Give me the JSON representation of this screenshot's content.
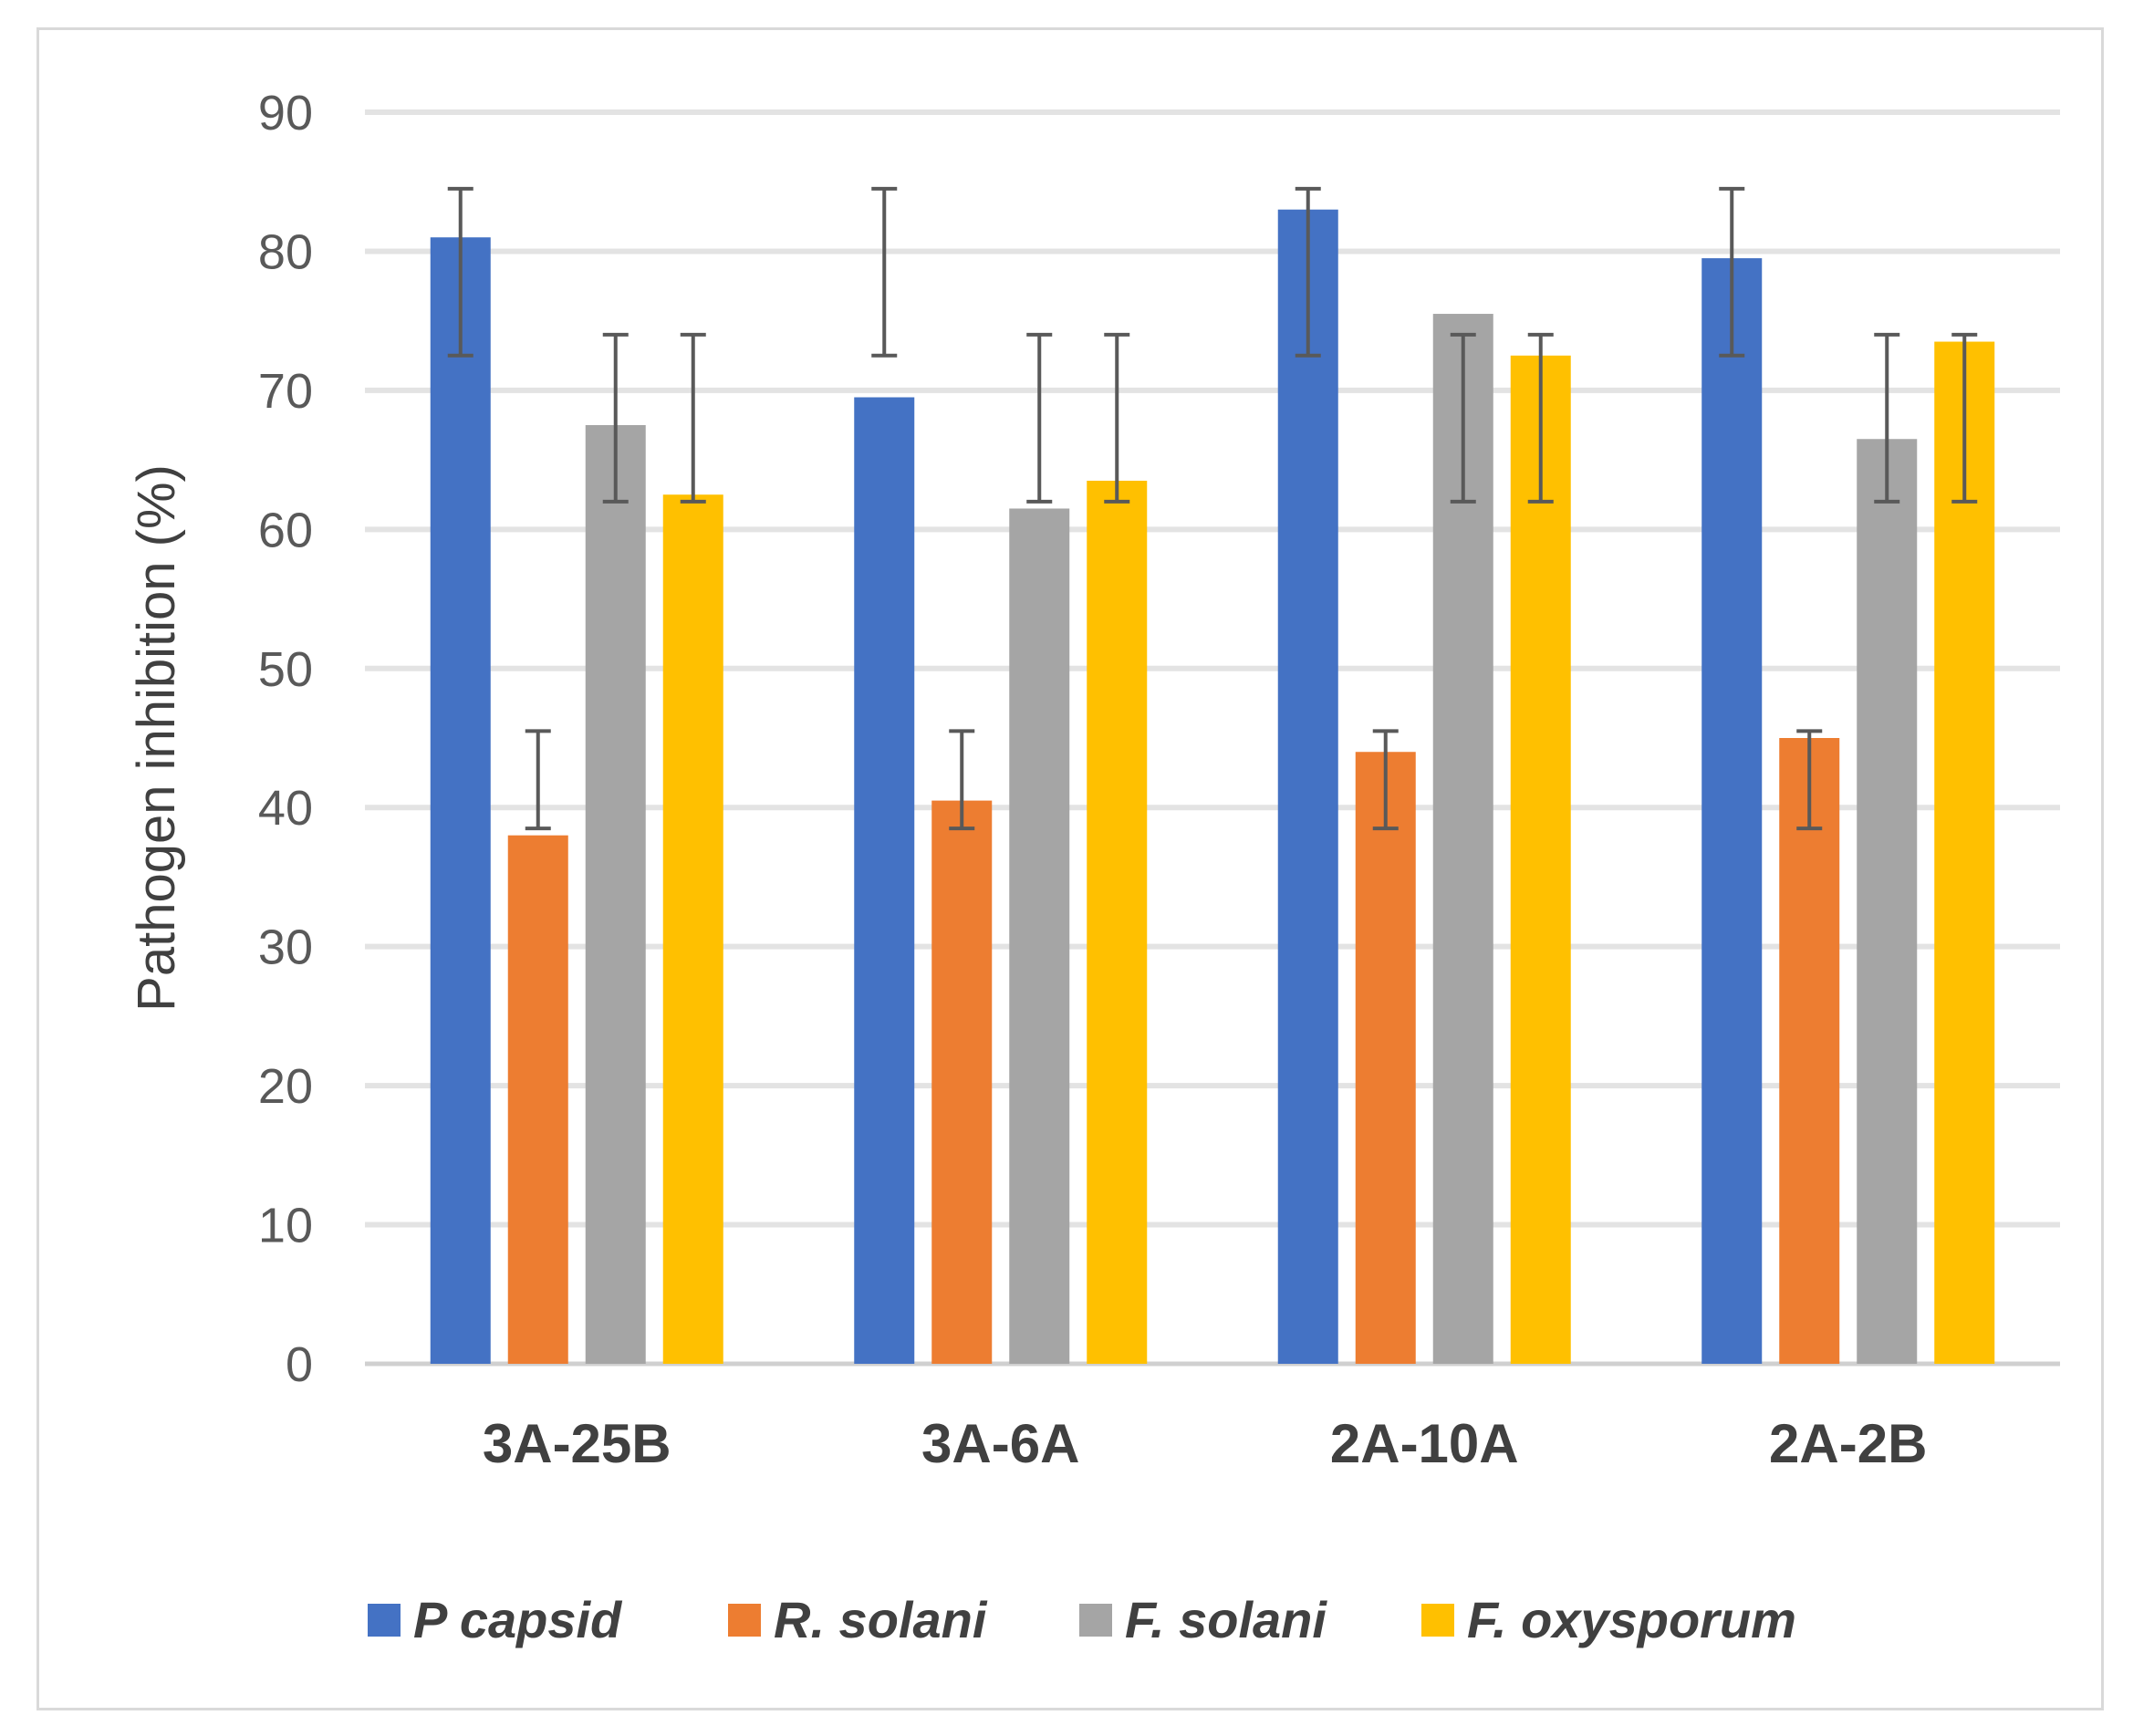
{
  "chart_data": {
    "type": "bar",
    "title": "",
    "xlabel": "",
    "ylabel": "Pathogen inhibition (%)",
    "ylim": [
      0,
      90
    ],
    "yticks": [
      0,
      10,
      20,
      30,
      40,
      50,
      60,
      70,
      80,
      90
    ],
    "grid": true,
    "legend_position": "bottom",
    "categories": [
      "3A-25B",
      "3A-6A",
      "2A-10A",
      "2A-2B"
    ],
    "series": [
      {
        "name": "P capsid",
        "color": "#4472C4",
        "values": [
          81,
          69.5,
          83,
          79.5
        ],
        "err_low": [
          72.5,
          72.5,
          72.5,
          72.5
        ],
        "err_high": [
          84.5,
          84.5,
          84.5,
          84.5
        ]
      },
      {
        "name": "R. solani",
        "color": "#ED7D31",
        "values": [
          38,
          40.5,
          44,
          45
        ],
        "err_low": [
          38.5,
          38.5,
          38.5,
          38.5
        ],
        "err_high": [
          45.5,
          45.5,
          45.5,
          45.5
        ]
      },
      {
        "name": "F. solani",
        "color": "#A5A5A5",
        "values": [
          67.5,
          61.5,
          75.5,
          66.5
        ],
        "err_low": [
          62,
          62,
          62,
          62
        ],
        "err_high": [
          74,
          74,
          74,
          74
        ]
      },
      {
        "name": "F. oxysporum",
        "color": "#FFC000",
        "values": [
          62.5,
          63.5,
          72.5,
          73.5
        ],
        "err_low": [
          62,
          62,
          62,
          62
        ],
        "err_high": [
          74,
          74,
          74,
          74
        ]
      }
    ]
  }
}
